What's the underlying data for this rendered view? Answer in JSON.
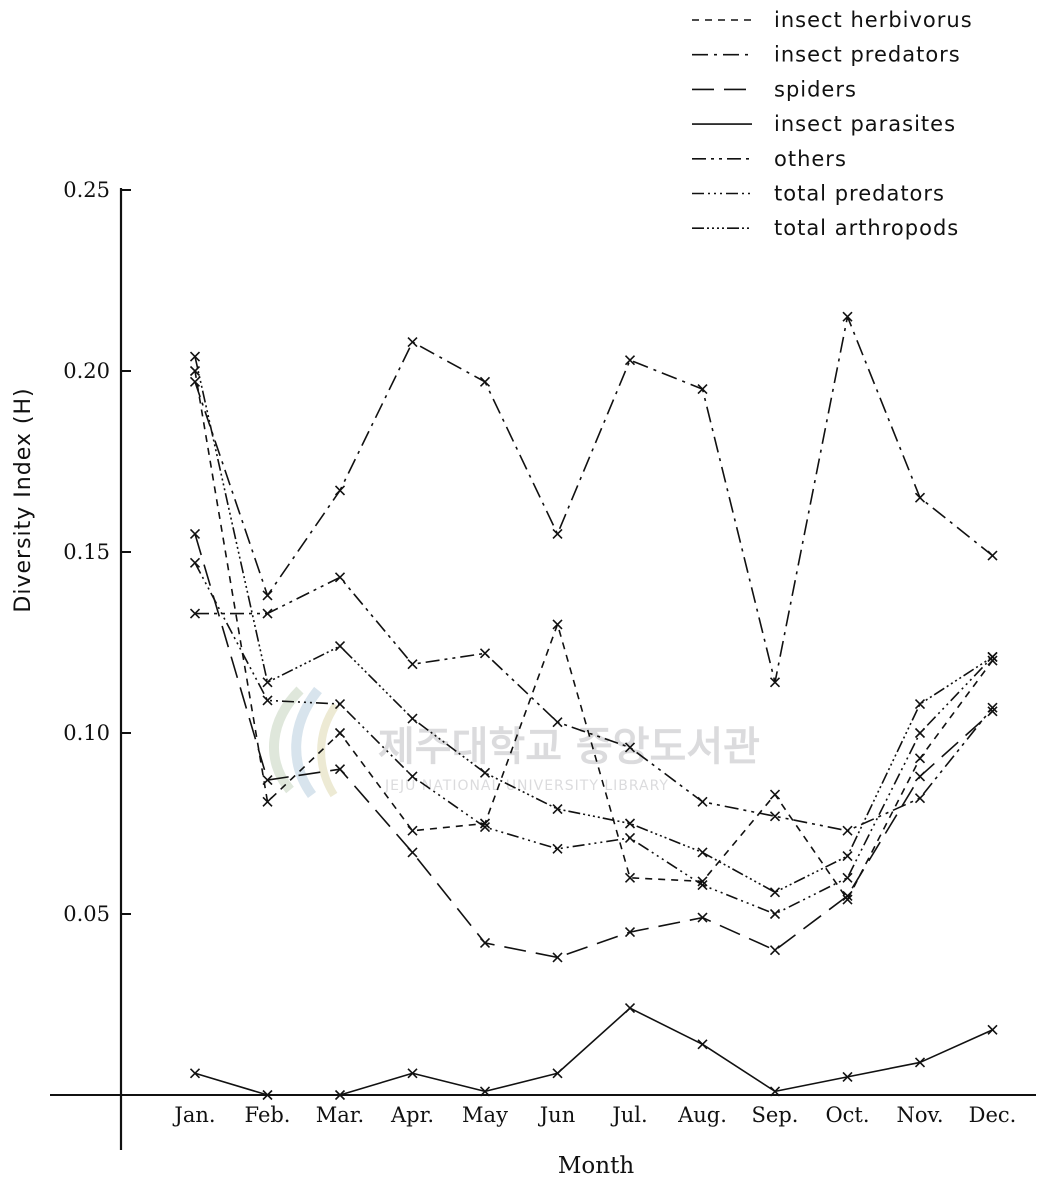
{
  "watermark": {
    "title": "제주대학교 중앙도서관",
    "subtitle": "JEJU NATIONAL UNIVERSITY LIBRARY"
  },
  "chart_data": {
    "type": "line",
    "xlabel": "Month",
    "ylabel": "Diversity Index (H)",
    "categories": [
      "Jan.",
      "Feb.",
      "Mar.",
      "Apr.",
      "May",
      "Jun",
      "Jul.",
      "Aug.",
      "Sep.",
      "Oct.",
      "Nov.",
      "Dec."
    ],
    "ylim": [
      0,
      0.25
    ],
    "yticks": [
      0.05,
      0.1,
      0.15,
      0.2,
      0.25
    ],
    "ytick_labels": [
      "0.05",
      "0.10",
      "0.15",
      "0.20",
      "0.25"
    ],
    "grid": false,
    "legend_position": "top-right",
    "series": [
      {
        "name": "insect herbivorus",
        "style": "dotted-dash",
        "values": [
          0.2,
          0.081,
          0.1,
          0.073,
          0.075,
          0.13,
          0.06,
          0.059,
          0.083,
          0.054,
          0.093,
          0.12
        ]
      },
      {
        "name": "insect predators",
        "style": "dash-dot",
        "values": [
          0.197,
          0.138,
          0.167,
          0.208,
          0.197,
          0.155,
          0.203,
          0.195,
          0.114,
          0.215,
          0.165,
          0.149
        ]
      },
      {
        "name": "spiders",
        "style": "long-dash",
        "values": [
          0.155,
          0.087,
          0.09,
          0.067,
          0.042,
          0.038,
          0.045,
          0.049,
          0.04,
          0.055,
          0.088,
          0.106
        ]
      },
      {
        "name": "insect parasites",
        "style": "solid",
        "values": [
          0.006,
          0.0,
          0.0,
          0.006,
          0.001,
          0.006,
          0.024,
          0.014,
          0.001,
          0.005,
          0.009,
          0.018
        ]
      },
      {
        "name": "others",
        "style": "dash-dot-dot",
        "values": [
          0.133,
          0.133,
          0.143,
          0.119,
          0.122,
          0.103,
          0.096,
          0.081,
          0.077,
          0.073,
          0.082,
          0.107
        ]
      },
      {
        "name": "total predators",
        "style": "dash-dots",
        "values": [
          0.147,
          0.109,
          0.108,
          0.088,
          0.074,
          0.068,
          0.071,
          0.058,
          0.05,
          0.06,
          0.1,
          0.121
        ]
      },
      {
        "name": "total arthropods",
        "style": "dash-dots-dense",
        "values": [
          0.204,
          0.114,
          0.124,
          0.104,
          0.089,
          0.079,
          0.075,
          0.067,
          0.056,
          0.066,
          0.108,
          0.121
        ]
      }
    ]
  }
}
